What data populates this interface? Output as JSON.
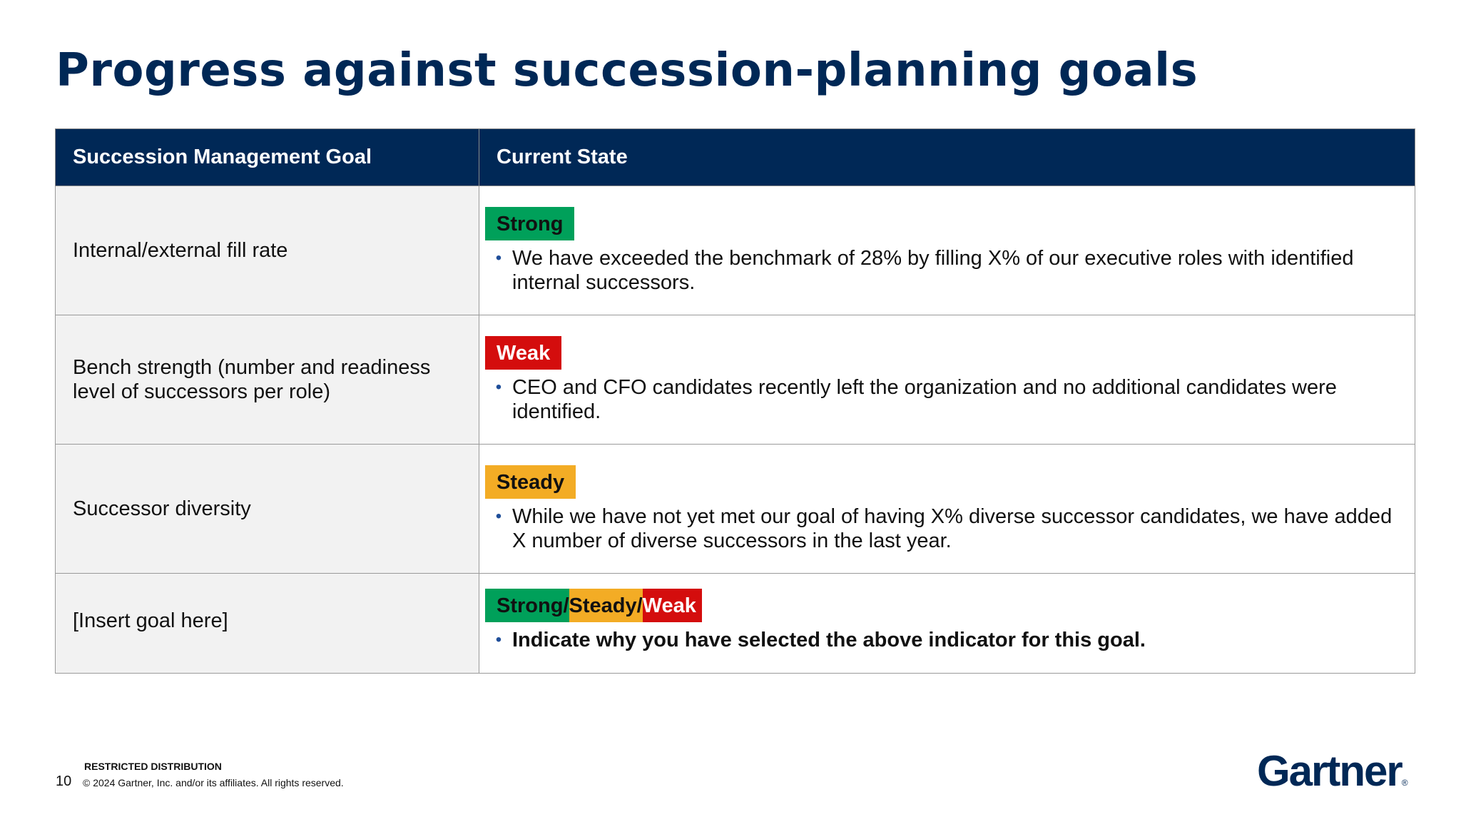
{
  "page": {
    "title": "Progress against succession-planning goals"
  },
  "table": {
    "headers": [
      "Succession Management Goal",
      "Current State"
    ],
    "rows": [
      {
        "goal": "Internal/external fill rate",
        "status": "Strong",
        "detail": "We have exceeded the benchmark of 28% by filling X% of our executive roles with identified internal successors."
      },
      {
        "goal": "Bench strength (number and readiness level of successors per role)",
        "status": "Weak",
        "detail": "CEO and CFO candidates recently left the organization and no additional candidates were identified."
      },
      {
        "goal": "Successor diversity",
        "status": "Steady",
        "detail": "While we have not yet met our goal of having X% diverse successor candidates, we have added X number of diverse successors in the last year."
      },
      {
        "goal": "[Insert goal here]",
        "status_parts": [
          "Strong",
          "/",
          "Steady",
          "/",
          "Weak"
        ],
        "detail": "Indicate why you have selected the above indicator for this goal."
      }
    ]
  },
  "colors": {
    "navy": "#002856",
    "strong": "#00a05a",
    "steady": "#f3ac25",
    "weak": "#d40d0d"
  },
  "bullet_icon": "bullet-dot-icon",
  "footer": {
    "label": "RESTRICTED DISTRIBUTION",
    "page_number": "10",
    "copyright": "© 2024 Gartner, Inc. and/or its affiliates. All rights reserved.",
    "logo_text": "Gartner",
    "logo_mark": "®"
  }
}
